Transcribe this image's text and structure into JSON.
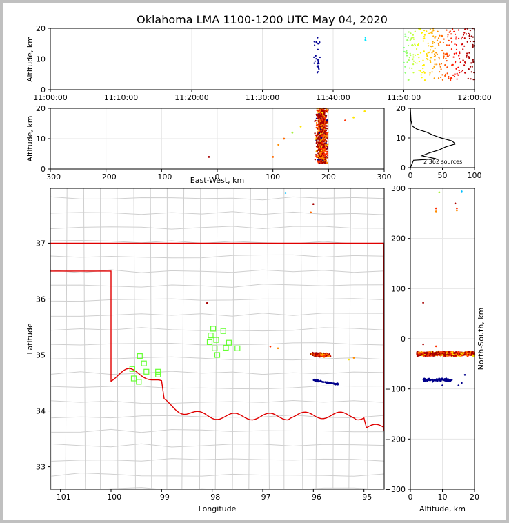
{
  "title": "Oklahoma LMA 1100-1200 UTC May 04, 2020",
  "chart_data": [
    {
      "panel": "time-height",
      "type": "scatter",
      "ylabel": "Altitude, km",
      "xlabel": "",
      "xlim": [
        "11:00:00",
        "12:00:00"
      ],
      "xticks": [
        "11:00:00",
        "11:10:00",
        "11:20:00",
        "11:30:00",
        "11:40:00",
        "11:50:00",
        "12:00:00"
      ],
      "ylim": [
        0,
        20
      ],
      "yticks": [
        "0",
        "10",
        "20"
      ],
      "grid": true,
      "color_by": "time (blue → red)",
      "clusters": [
        {
          "time_range": [
            "11:37:10",
            "11:38:10"
          ],
          "alt_range": [
            4,
            17
          ],
          "color": "#00008b"
        },
        {
          "time_range": [
            "11:44:30",
            "11:44:40"
          ],
          "alt_range": [
            16,
            17
          ],
          "color": "#00bfff"
        },
        {
          "time_range": [
            "11:50:00",
            "11:52:00"
          ],
          "alt_range": [
            3,
            19
          ],
          "color": "#a5ef3c"
        },
        {
          "time_range": [
            "11:52:00",
            "11:55:00"
          ],
          "alt_range": [
            3,
            20
          ],
          "color": "#ffe500"
        },
        {
          "time_range": [
            "11:55:00",
            "11:58:00"
          ],
          "alt_range": [
            3,
            20
          ],
          "color": "#ff6a00"
        },
        {
          "time_range": [
            "11:58:00",
            "12:00:00"
          ],
          "alt_range": [
            3,
            20
          ],
          "color": "#a60000"
        }
      ]
    },
    {
      "panel": "east-west-altitude",
      "type": "scatter",
      "xlabel": "East-West, km",
      "ylabel": "Altitude, km",
      "xlim": [
        -300,
        300
      ],
      "xticks": [
        "−300",
        "−200",
        "−100",
        "0",
        "100",
        "200",
        "300"
      ],
      "ylim": [
        0,
        20
      ],
      "yticks": [
        "0",
        "10",
        "20"
      ],
      "grid": true,
      "main_cluster": {
        "x_range": [
          160,
          215
        ],
        "alt_range": [
          2,
          20
        ]
      },
      "outliers": [
        [
          -15,
          4
        ],
        [
          100,
          4
        ],
        [
          110,
          8
        ],
        [
          120,
          10
        ],
        [
          135,
          12
        ],
        [
          150,
          14
        ],
        [
          230,
          16
        ],
        [
          245,
          17
        ],
        [
          265,
          19
        ]
      ]
    },
    {
      "panel": "altitude-histogram",
      "type": "line",
      "xlim": [
        0,
        100
      ],
      "xticks": [
        "0",
        "50",
        "100"
      ],
      "ylim": [
        0,
        20
      ],
      "yticks": [
        "0",
        "10",
        "20"
      ],
      "annotation": "2,362 sources",
      "profile": [
        [
          0,
          0
        ],
        [
          5,
          2.5
        ],
        [
          40,
          3
        ],
        [
          18,
          4
        ],
        [
          30,
          5
        ],
        [
          45,
          6
        ],
        [
          55,
          7
        ],
        [
          70,
          8
        ],
        [
          65,
          9
        ],
        [
          48,
          10
        ],
        [
          35,
          11
        ],
        [
          25,
          12
        ],
        [
          10,
          13
        ],
        [
          3,
          14
        ],
        [
          1,
          16
        ],
        [
          0,
          20
        ]
      ]
    },
    {
      "panel": "plan-view",
      "type": "scatter",
      "xlabel": "Longitude",
      "ylabel": "Latitude",
      "xlim": [
        -101.2,
        -94.6
      ],
      "xticks": [
        "−101",
        "−100",
        "−99",
        "−98",
        "−97",
        "−96",
        "−95"
      ],
      "ylim": [
        32.6,
        37.98
      ],
      "yticks": [
        "33",
        "34",
        "35",
        "36",
        "37"
      ],
      "main_band": {
        "lon_range": [
          -96.1,
          -95.5
        ],
        "lat": 35.0
      },
      "blue_band": {
        "lon_range": [
          -96.0,
          -95.5
        ],
        "lat": 34.55
      },
      "station_color": "#66ff33",
      "stations": [
        [
          -97.98,
          35.47
        ],
        [
          -97.78,
          35.43
        ],
        [
          -98.03,
          35.35
        ],
        [
          -97.92,
          35.27
        ],
        [
          -98.05,
          35.23
        ],
        [
          -97.67,
          35.22
        ],
        [
          -97.95,
          35.12
        ],
        [
          -97.73,
          35.13
        ],
        [
          -97.5,
          35.12
        ],
        [
          -97.9,
          35.0
        ],
        [
          -99.43,
          34.98
        ],
        [
          -99.35,
          34.85
        ],
        [
          -99.58,
          34.75
        ],
        [
          -99.3,
          34.7
        ],
        [
          -99.07,
          34.7
        ],
        [
          -99.07,
          34.65
        ],
        [
          -99.55,
          34.58
        ],
        [
          -99.45,
          34.52
        ]
      ]
    },
    {
      "panel": "north-south-altitude",
      "type": "scatter",
      "xlabel": "Altitude, km",
      "ylabel": "North-South, km",
      "xlim": [
        0,
        20
      ],
      "xticks": [
        "0",
        "10",
        "20"
      ],
      "ylim": [
        -300,
        300
      ],
      "yticks": [
        "−300",
        "−200",
        "−100",
        "0",
        "100",
        "200",
        "300"
      ],
      "main_cluster": {
        "ns": -30,
        "alt_range": [
          2,
          20
        ]
      },
      "blue_cluster": {
        "ns": -82,
        "alt_range": [
          4,
          16
        ]
      }
    }
  ]
}
